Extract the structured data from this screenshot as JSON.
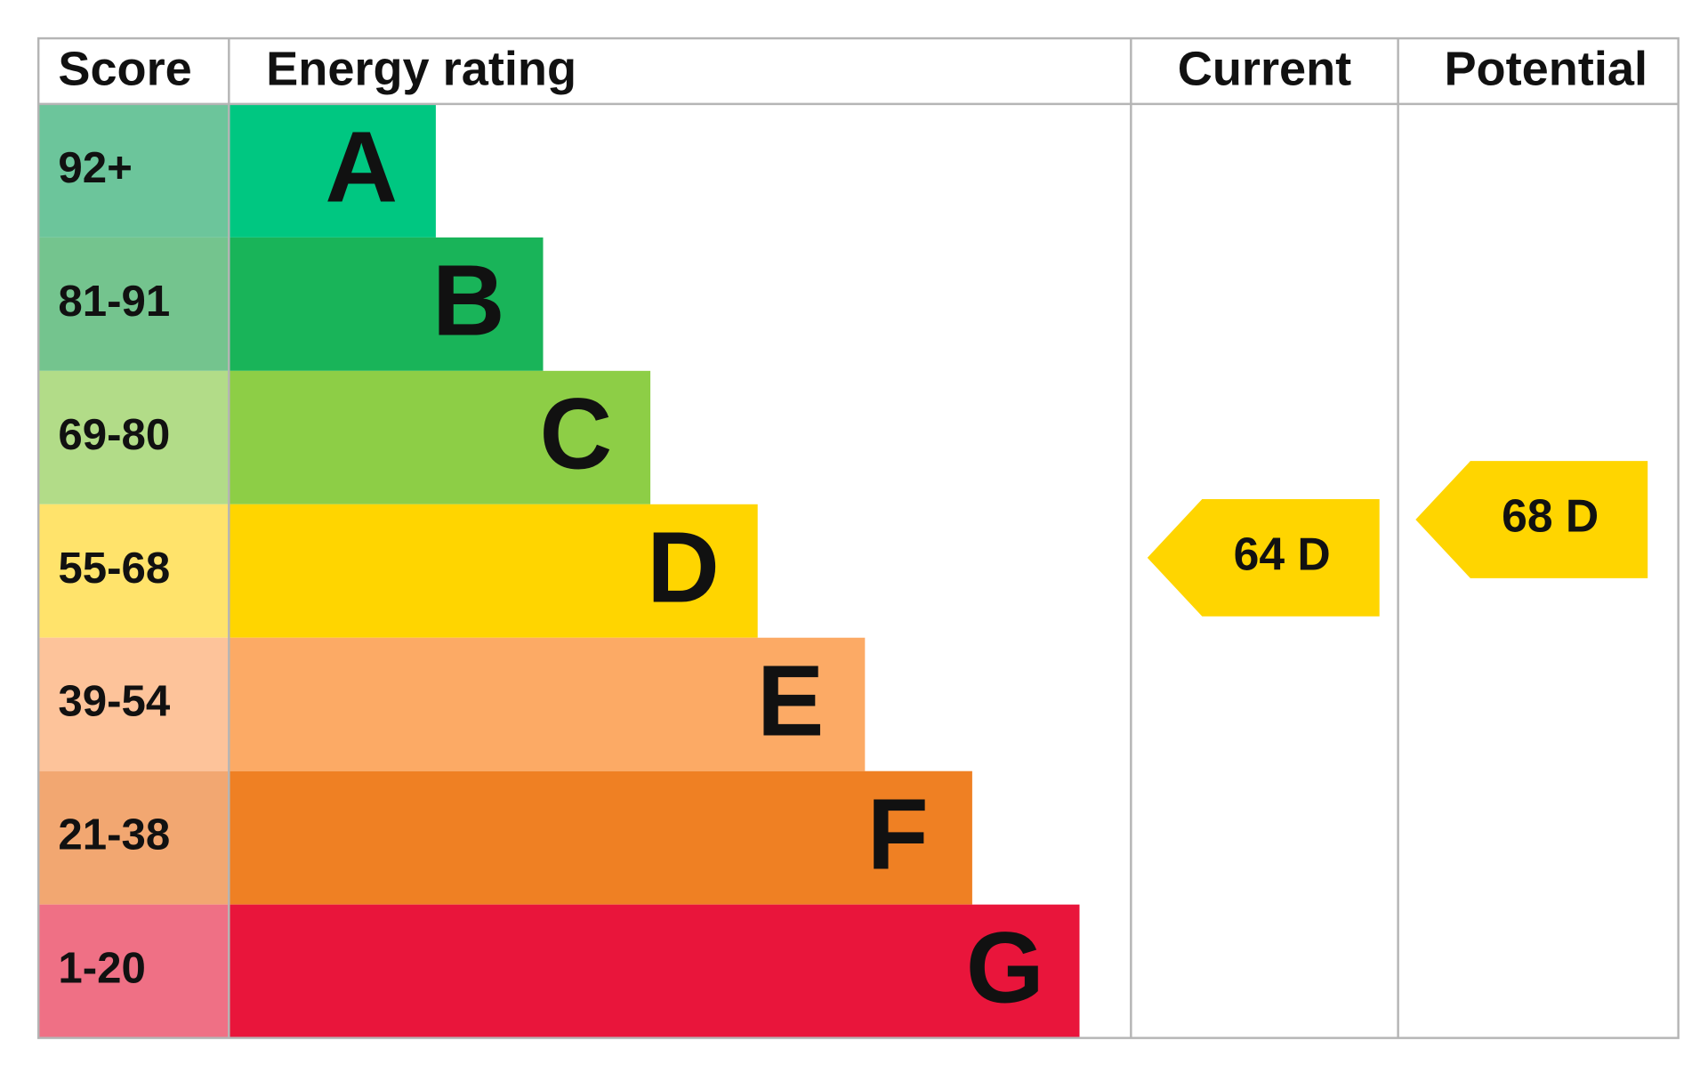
{
  "chart_data": {
    "type": "epc",
    "headers": [
      "Score",
      "Energy rating",
      "Current",
      "Potential"
    ],
    "bands": [
      {
        "range": "92+",
        "rating": "A",
        "color": "#00c781",
        "score_color": "#6cc59b"
      },
      {
        "range": "81-91",
        "rating": "B",
        "color": "#19b459",
        "score_color": "#74c48e"
      },
      {
        "range": "69-80",
        "rating": "C",
        "color": "#8dce46",
        "score_color": "#b2dc88"
      },
      {
        "range": "55-68",
        "rating": "D",
        "color": "#ffd500",
        "score_color": "#ffe36b"
      },
      {
        "range": "39-54",
        "rating": "E",
        "color": "#fcaa65",
        "score_color": "#fdc39a"
      },
      {
        "range": "21-38",
        "rating": "F",
        "color": "#ef8023",
        "score_color": "#f2a771"
      },
      {
        "range": "1-20",
        "rating": "G",
        "color": "#e9153b",
        "score_color": "#ef7085"
      }
    ],
    "current": {
      "value": 64,
      "label": "64 D",
      "color": "#ffd500"
    },
    "potential": {
      "value": 68,
      "label": "68 D",
      "color": "#ffd500"
    }
  }
}
